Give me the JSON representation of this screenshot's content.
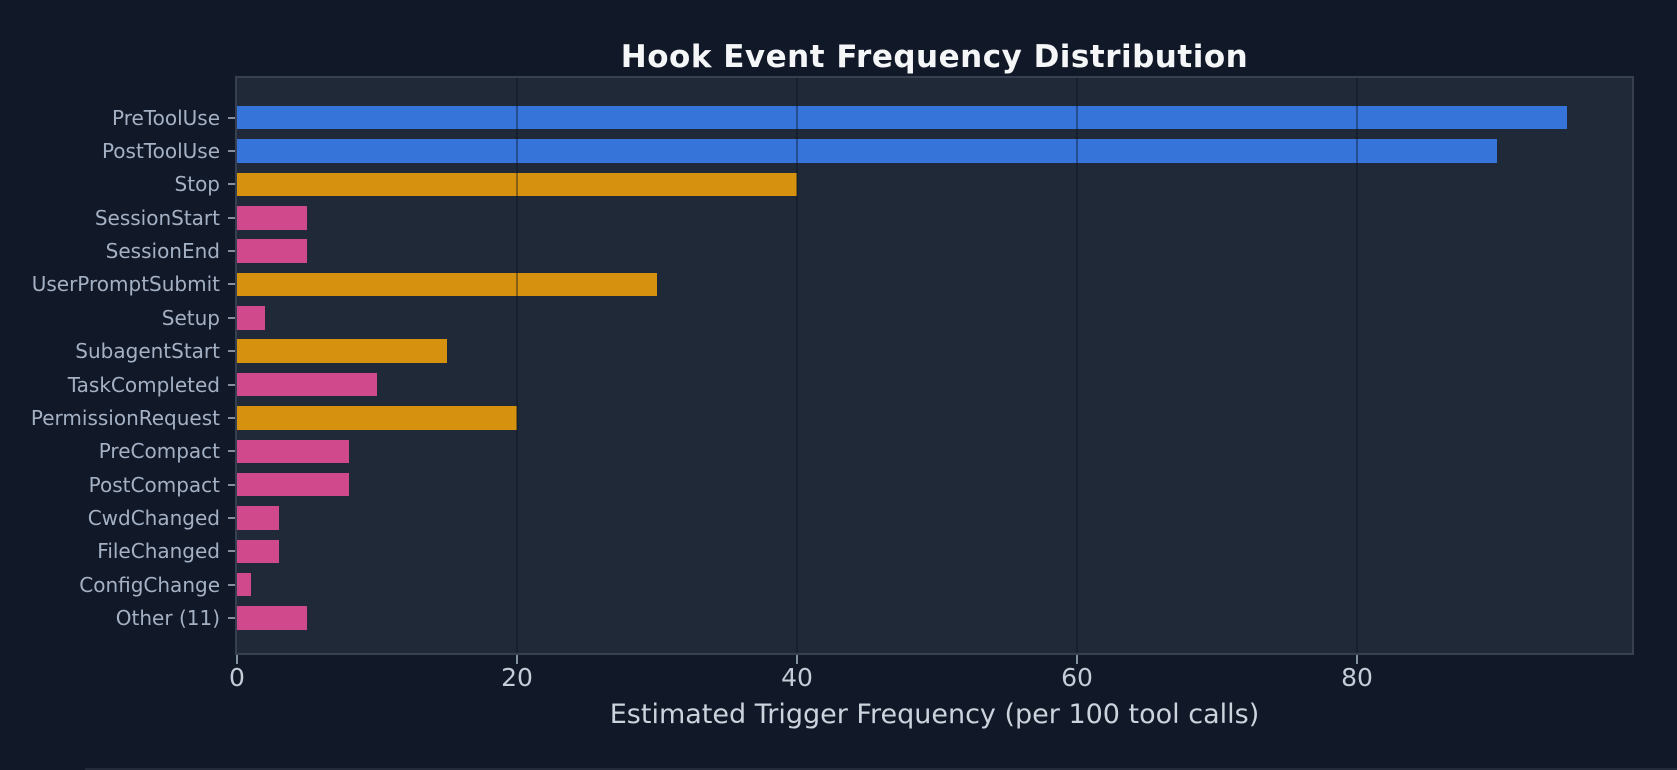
{
  "chart_data": {
    "type": "bar",
    "orientation": "horizontal",
    "title": "Hook Event Frequency Distribution",
    "xlabel": "Estimated Trigger Frequency (per 100 tool calls)",
    "ylabel": "",
    "categories": [
      "PreToolUse",
      "PostToolUse",
      "Stop",
      "SessionStart",
      "SessionEnd",
      "UserPromptSubmit",
      "Setup",
      "SubagentStart",
      "TaskCompleted",
      "PermissionRequest",
      "PreCompact",
      "PostCompact",
      "CwdChanged",
      "FileChanged",
      "ConfigChange",
      "Other (11)"
    ],
    "values": [
      95,
      90,
      40,
      5,
      5,
      30,
      2,
      15,
      10,
      20,
      8,
      8,
      3,
      3,
      1,
      5
    ],
    "bar_colors": [
      "#3674d9",
      "#3674d9",
      "#d6920f",
      "#d0498c",
      "#d0498c",
      "#d6920f",
      "#d0498c",
      "#d6920f",
      "#d0498c",
      "#d6920f",
      "#d0498c",
      "#d0498c",
      "#d0498c",
      "#d0498c",
      "#d0498c",
      "#d0498c"
    ],
    "x_ticks": [
      "0",
      "20",
      "40",
      "60",
      "80"
    ],
    "x_tick_values": [
      0,
      20,
      40,
      60,
      80
    ],
    "xlim": [
      0,
      99.6
    ],
    "grid": "vertical",
    "legend": "none",
    "colors": {
      "blue": "#3674d9",
      "orange": "#d6920f",
      "pink": "#d0498c",
      "figure_background": "#111827",
      "panel_background": "#1f2937",
      "spine": "#364050",
      "title_text": "#f4f6f8",
      "y_tick_text": "#a4b1c4",
      "x_tick_text": "#c5ccd8",
      "axis_label_text": "#ccd3dd"
    }
  }
}
